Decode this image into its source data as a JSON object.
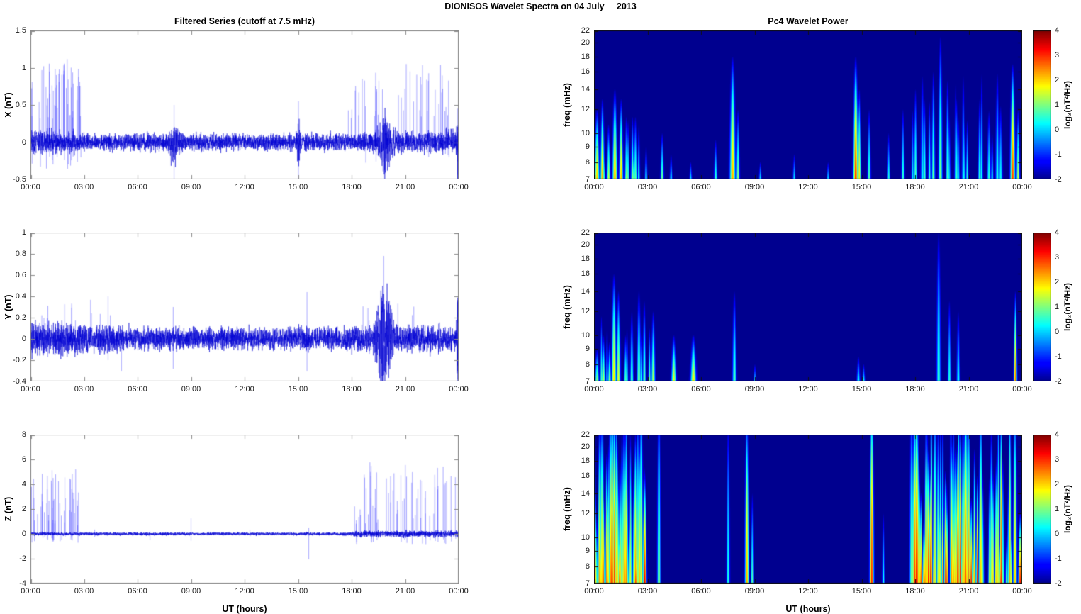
{
  "figure_title": "DIONISOS Wavelet Spectra on 04 July     2013",
  "x_axis": {
    "label": "UT (hours)",
    "tick_labels": [
      "00:00",
      "03:00",
      "06:00",
      "09:00",
      "12:00",
      "15:00",
      "18:00",
      "21:00",
      "00:00"
    ],
    "range_hours": [
      0,
      24
    ]
  },
  "colorbar": {
    "label": "log₂(nT²/Hz)",
    "ticks": [
      4,
      3,
      2,
      1,
      0,
      -1,
      -2
    ],
    "clim": [
      -2,
      4
    ]
  },
  "palette": {
    "background": "#ffffff",
    "trace_color": "rgba(0,0,210,0.9)",
    "spike_color": "rgba(60,60,255,0.55)",
    "axis_color_line": "#8c8c8c",
    "axis_color_heatmap": "#111111",
    "heatmap_min_color": "#00008f"
  },
  "chart_data": [
    {
      "id": "ts-x",
      "type": "line",
      "panel": "left-top",
      "title": "Filtered Series (cutoff at 7.5 mHz)",
      "ylabel": "X (nT)",
      "ylim": [
        -0.5,
        1.5
      ],
      "yticks": [
        1.5,
        1,
        0.5,
        0,
        -0.5
      ],
      "xlim_hours": [
        0,
        24
      ],
      "seed": 7,
      "samples": 4500,
      "noise_envelope": [
        [
          0,
          0.08
        ],
        [
          2.6,
          0.065
        ],
        [
          3,
          0.055
        ],
        [
          18,
          0.055
        ],
        [
          19,
          0.065
        ],
        [
          21,
          0.065
        ],
        [
          24,
          0.075
        ]
      ],
      "bursts": [
        {
          "t": 8.05,
          "w": 0.28,
          "amp": 0.08
        },
        {
          "t": 15.02,
          "w": 0.06,
          "amp": 0.18
        },
        {
          "t": 19.9,
          "w": 0.38,
          "amp": 0.13
        },
        {
          "t": 23.93,
          "w": 0.07,
          "amp": 0.15
        }
      ],
      "spike_trains": [
        {
          "t0": 0.05,
          "t1": 2.85,
          "count": 52,
          "up": [
            0.3,
            1.12
          ],
          "down": [
            0.1,
            0.36
          ],
          "down_frac": 0.35
        },
        {
          "t0": 17.8,
          "t1": 23.5,
          "count": 48,
          "up": [
            0.3,
            1.06
          ],
          "down": [
            0.1,
            0.3
          ],
          "down_frac": 0.3
        }
      ],
      "spikes": [
        {
          "t": 15.02,
          "up": 0.55,
          "down": -0.62
        },
        {
          "t": 8.05,
          "up": 0.5,
          "down": -0.55
        },
        {
          "t": 23.93,
          "up": 0.45,
          "down": -0.5
        },
        {
          "t": 23.99,
          "up": 0.2,
          "down": -0.45
        }
      ]
    },
    {
      "id": "ts-y",
      "type": "line",
      "panel": "left-middle",
      "ylabel": "Y (nT)",
      "ylim": [
        -0.4,
        1.0
      ],
      "yticks": [
        1,
        0.8,
        0.6,
        0.4,
        0.2,
        0,
        -0.2,
        -0.4
      ],
      "xlim_hours": [
        0,
        24
      ],
      "seed": 13,
      "samples": 4500,
      "noise_envelope": [
        [
          0,
          0.075
        ],
        [
          3,
          0.065
        ],
        [
          6,
          0.055
        ],
        [
          9,
          0.05
        ],
        [
          17.5,
          0.05
        ],
        [
          18.5,
          0.06
        ],
        [
          24,
          0.06
        ]
      ],
      "bursts": [
        {
          "t": 19.75,
          "w": 0.3,
          "amp": 0.22
        },
        {
          "t": 20.15,
          "w": 0.15,
          "amp": 0.08
        },
        {
          "t": 23.95,
          "w": 0.05,
          "amp": 0.16
        }
      ],
      "spike_trains": [
        {
          "t0": 0.3,
          "t1": 5.8,
          "count": 14,
          "up": [
            0.15,
            0.4
          ],
          "down": [
            0.05,
            0.18
          ],
          "down_frac": 0.4
        },
        {
          "t0": 18.5,
          "t1": 21.5,
          "count": 6,
          "up": [
            0.15,
            0.35
          ],
          "down": [
            0.05,
            0.15
          ],
          "down_frac": 0.3
        }
      ],
      "spikes": [
        {
          "t": 4.35,
          "up": 0.4,
          "down": -0.2
        },
        {
          "t": 8.0,
          "up": 0.3,
          "down": -0.28
        },
        {
          "t": 15.5,
          "up": 0.44,
          "down": -0.3
        },
        {
          "t": 19.8,
          "up": 0.78,
          "down": -0.3
        },
        {
          "t": 5.1,
          "up": 0.05,
          "down": -0.3
        },
        {
          "t": 23.95,
          "up": 0.25,
          "down": -0.38
        }
      ]
    },
    {
      "id": "ts-z",
      "type": "line",
      "panel": "left-bottom",
      "ylabel": "Z (nT)",
      "ylim": [
        -4,
        8
      ],
      "yticks": [
        8,
        6,
        4,
        2,
        0,
        -2,
        -4
      ],
      "xlim_hours": [
        0,
        24
      ],
      "seed": 21,
      "samples": 4500,
      "noise_envelope": [
        [
          0,
          0.07
        ],
        [
          3,
          0.06
        ],
        [
          18,
          0.06
        ],
        [
          18.2,
          0.12
        ],
        [
          24,
          0.13
        ]
      ],
      "bursts": [],
      "spike_trains": [
        {
          "t0": 0.05,
          "t1": 2.9,
          "count": 50,
          "up": [
            0.6,
            5.3
          ],
          "down": [
            0.2,
            0.9
          ],
          "down_frac": 0.5
        },
        {
          "t0": 18.05,
          "t1": 23.97,
          "count": 62,
          "up": [
            0.6,
            5.8
          ],
          "down": [
            0.2,
            1.0
          ],
          "down_frac": 0.5
        }
      ],
      "spikes": [
        {
          "t": 3.6,
          "up": 0.35,
          "down": -0.25
        },
        {
          "t": 6.7,
          "up": 0.2,
          "down": -0.5
        },
        {
          "t": 9.0,
          "up": 1.25,
          "down": -0.55
        },
        {
          "t": 15.6,
          "up": 0.5,
          "down": -2.05
        },
        {
          "t": 12.3,
          "up": 0.3,
          "down": -0.2
        }
      ]
    },
    {
      "id": "wv-x",
      "type": "heatmap",
      "panel": "right-top",
      "title": "Pc4 Wavelet Power",
      "ylabel": "freq (mHz)",
      "yscale": "log",
      "flim": [
        7,
        22
      ],
      "yticks": [
        22,
        20,
        18,
        16,
        14,
        12,
        10,
        9,
        8,
        7
      ],
      "clim": [
        -2,
        4
      ],
      "xlim_hours": [
        0,
        24
      ],
      "seed": 31,
      "events": [
        {
          "t": 0.15,
          "fmax": 12,
          "v": 2.2,
          "w": 0.06
        },
        {
          "t": 0.45,
          "fmax": 13,
          "v": 2.4,
          "w": 0.05
        },
        {
          "t": 0.8,
          "fmax": 10.5,
          "v": 1.6,
          "w": 0.04
        },
        {
          "t": 1.15,
          "fmax": 14,
          "v": 2.5,
          "w": 0.06
        },
        {
          "t": 1.5,
          "fmax": 13,
          "v": 2.3,
          "w": 0.05
        },
        {
          "t": 1.8,
          "fmax": 10,
          "v": 1.4,
          "w": 0.04
        },
        {
          "t": 2.2,
          "fmax": 9,
          "v": 1.0,
          "w": 0.03
        },
        {
          "t": 2.9,
          "fmax": 9,
          "v": 0.8,
          "w": 0.03
        },
        {
          "t": 3.8,
          "fmax": 10,
          "v": 1.1,
          "w": 0.04
        },
        {
          "t": 4.3,
          "fmax": 8.5,
          "v": 0.6,
          "w": 0.03
        },
        {
          "t": 5.4,
          "fmax": 8,
          "v": 0.3,
          "w": 0.03
        },
        {
          "t": 6.8,
          "fmax": 9.5,
          "v": 0.7,
          "w": 0.04
        },
        {
          "t": 7.75,
          "fmax": 18,
          "v": 2.3,
          "w": 0.07
        },
        {
          "t": 8.05,
          "fmax": 12,
          "v": 1.2,
          "w": 0.04
        },
        {
          "t": 9.3,
          "fmax": 8,
          "v": 0.3,
          "w": 0.03
        },
        {
          "t": 11.2,
          "fmax": 8.5,
          "v": 0.3,
          "w": 0.03
        },
        {
          "t": 13.1,
          "fmax": 8,
          "v": 0.25,
          "w": 0.03
        },
        {
          "t": 14.65,
          "fmax": 18,
          "v": 3.2,
          "w": 0.06
        },
        {
          "t": 14.85,
          "fmax": 14,
          "v": 2.0,
          "w": 0.04
        },
        {
          "t": 15.4,
          "fmax": 12,
          "v": 0.9,
          "w": 0.04
        },
        {
          "t": 16.5,
          "fmax": 10,
          "v": 0.7,
          "w": 0.03
        },
        {
          "t": 17.3,
          "fmax": 12,
          "v": 0.7,
          "w": 0.04
        },
        {
          "t": 18.0,
          "fmax": 14,
          "v": 0.9,
          "w": 0.04
        },
        {
          "t": 18.5,
          "fmax": 13,
          "v": 0.8,
          "w": 0.04
        },
        {
          "t": 19.0,
          "fmax": 16,
          "v": 1.0,
          "w": 0.04
        },
        {
          "t": 19.4,
          "fmax": 21,
          "v": 1.1,
          "w": 0.05
        },
        {
          "t": 19.8,
          "fmax": 15,
          "v": 0.8,
          "w": 0.04
        },
        {
          "t": 20.3,
          "fmax": 13,
          "v": 0.7,
          "w": 0.04
        },
        {
          "t": 20.9,
          "fmax": 11,
          "v": 0.6,
          "w": 0.03
        },
        {
          "t": 21.6,
          "fmax": 13,
          "v": 0.8,
          "w": 0.04
        },
        {
          "t": 22.3,
          "fmax": 10,
          "v": 0.5,
          "w": 0.03
        },
        {
          "t": 23.45,
          "fmax": 17,
          "v": 3.0,
          "w": 0.06
        },
        {
          "t": 23.75,
          "fmax": 12,
          "v": 1.5,
          "w": 0.04
        }
      ],
      "bands": [
        {
          "t0": 0.1,
          "t1": 2.6,
          "count": 10,
          "fmax": [
            8,
            12
          ],
          "v": [
            0.4,
            1.2
          ],
          "w": [
            0.02,
            0.05
          ]
        },
        {
          "t0": 17.8,
          "t1": 23.2,
          "count": 14,
          "fmax": [
            9,
            16
          ],
          "v": [
            0.2,
            0.7
          ],
          "w": [
            0.02,
            0.05
          ]
        }
      ]
    },
    {
      "id": "wv-y",
      "type": "heatmap",
      "panel": "right-middle",
      "ylabel": "freq (mHz)",
      "yscale": "log",
      "flim": [
        7,
        22
      ],
      "yticks": [
        22,
        20,
        18,
        16,
        14,
        12,
        10,
        9,
        8,
        7
      ],
      "clim": [
        -2,
        4
      ],
      "xlim_hours": [
        0,
        24
      ],
      "seed": 41,
      "events": [
        {
          "t": 0.15,
          "fmax": 9,
          "v": 1.2,
          "w": 0.05
        },
        {
          "t": 0.5,
          "fmax": 10,
          "v": 1.5,
          "w": 0.05
        },
        {
          "t": 0.85,
          "fmax": 9.5,
          "v": 1.2,
          "w": 0.04
        },
        {
          "t": 1.1,
          "fmax": 16,
          "v": 2.0,
          "w": 0.06
        },
        {
          "t": 1.35,
          "fmax": 14,
          "v": 1.7,
          "w": 0.05
        },
        {
          "t": 1.75,
          "fmax": 10,
          "v": 0.9,
          "w": 0.04
        },
        {
          "t": 2.1,
          "fmax": 12,
          "v": 1.0,
          "w": 0.04
        },
        {
          "t": 2.5,
          "fmax": 14,
          "v": 1.2,
          "w": 0.05
        },
        {
          "t": 2.8,
          "fmax": 13,
          "v": 1.0,
          "w": 0.04
        },
        {
          "t": 3.3,
          "fmax": 12,
          "v": 1.4,
          "w": 0.05
        },
        {
          "t": 4.45,
          "fmax": 10,
          "v": 1.8,
          "w": 0.06
        },
        {
          "t": 5.55,
          "fmax": 10,
          "v": 2.0,
          "w": 0.07
        },
        {
          "t": 7.85,
          "fmax": 14,
          "v": 0.8,
          "w": 0.05
        },
        {
          "t": 9.0,
          "fmax": 8,
          "v": 0.2,
          "w": 0.03
        },
        {
          "t": 14.8,
          "fmax": 8.5,
          "v": 0.5,
          "w": 0.04
        },
        {
          "t": 15.1,
          "fmax": 8,
          "v": 0.4,
          "w": 0.03
        },
        {
          "t": 19.3,
          "fmax": 22,
          "v": 0.7,
          "w": 0.05
        },
        {
          "t": 19.9,
          "fmax": 13,
          "v": 0.6,
          "w": 0.04
        },
        {
          "t": 20.4,
          "fmax": 12,
          "v": 0.5,
          "w": 0.04
        },
        {
          "t": 23.6,
          "fmax": 14,
          "v": 2.8,
          "w": 0.04
        }
      ],
      "bands": [
        {
          "t0": 0.2,
          "t1": 3.6,
          "count": 10,
          "fmax": [
            8,
            13
          ],
          "v": [
            0.3,
            1.0
          ],
          "w": [
            0.02,
            0.04
          ]
        }
      ]
    },
    {
      "id": "wv-z",
      "type": "heatmap",
      "panel": "right-bottom",
      "ylabel": "freq (mHz)",
      "yscale": "log",
      "flim": [
        7,
        22
      ],
      "yticks": [
        22,
        20,
        18,
        16,
        14,
        12,
        10,
        9,
        8,
        7
      ],
      "clim": [
        -2,
        4
      ],
      "xlim_hours": [
        0,
        24
      ],
      "seed": 51,
      "events": [
        {
          "t": 3.62,
          "fmax": 30,
          "v": 1.4,
          "w": 0.04
        },
        {
          "t": 7.5,
          "fmax": 24,
          "v": 0.5,
          "w": 0.04
        },
        {
          "t": 8.55,
          "fmax": 26,
          "v": 2.4,
          "w": 0.05
        },
        {
          "t": 8.85,
          "fmax": 14,
          "v": 1.0,
          "w": 0.03
        },
        {
          "t": 15.55,
          "fmax": 30,
          "v": 3.2,
          "w": 0.05
        },
        {
          "t": 16.2,
          "fmax": 12,
          "v": 0.5,
          "w": 0.03
        }
      ],
      "bands": [
        {
          "t0": 0.0,
          "t1": 2.85,
          "count": 58,
          "fmax": [
            10,
            30
          ],
          "v": [
            0.8,
            3.6
          ],
          "w": [
            0.01,
            0.05
          ]
        },
        {
          "t0": 17.75,
          "t1": 23.98,
          "count": 85,
          "fmax": [
            10,
            30
          ],
          "v": [
            0.8,
            3.6
          ],
          "w": [
            0.01,
            0.05
          ]
        }
      ]
    }
  ]
}
